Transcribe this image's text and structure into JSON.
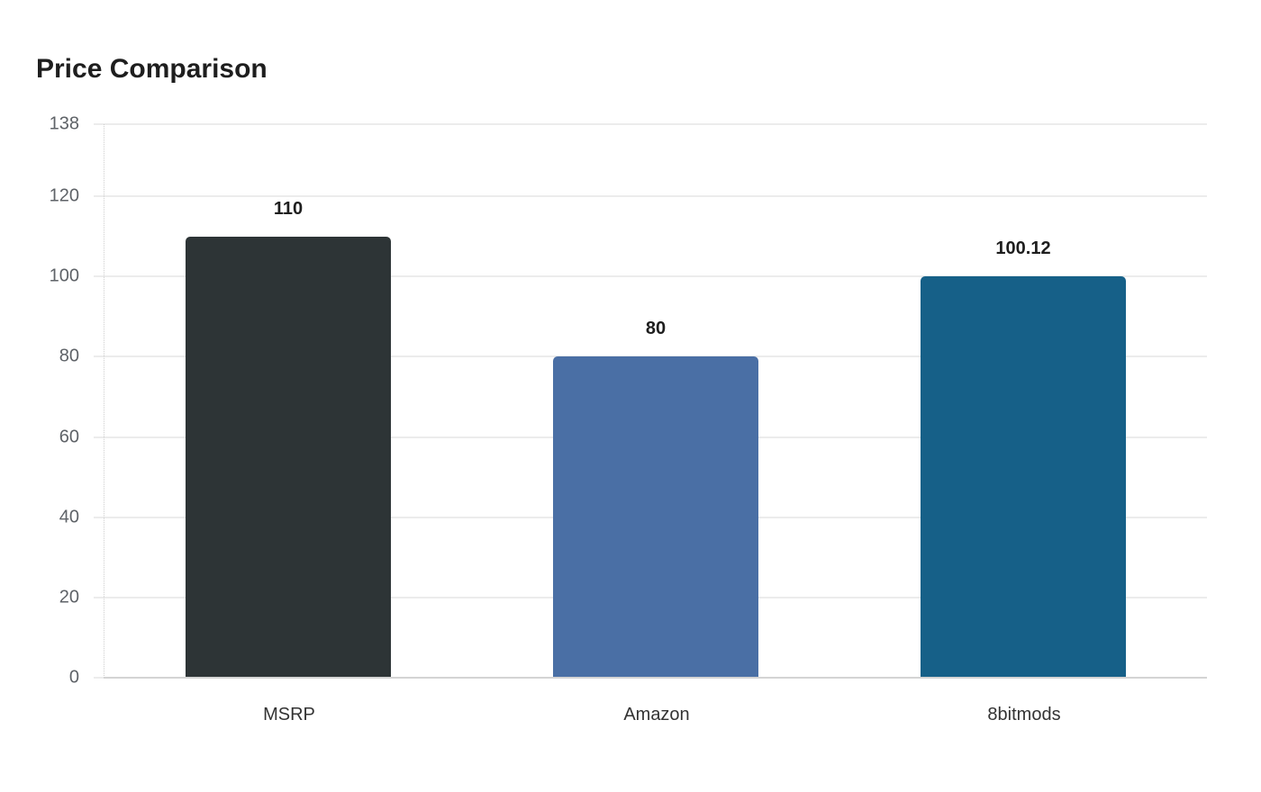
{
  "title": "Price Comparison",
  "y_ticks": [
    "0",
    "20",
    "40",
    "60",
    "80",
    "100",
    "120",
    "138"
  ],
  "bars": [
    {
      "label": "MSRP",
      "value_label": "110",
      "value": 110,
      "color": "#2d3436"
    },
    {
      "label": "Amazon",
      "value_label": "80",
      "value": 80,
      "color": "#4a6fa5"
    },
    {
      "label": "8bitmods",
      "value_label": "100.12",
      "value": 100.12,
      "color": "#166088"
    }
  ],
  "chart_data": {
    "type": "bar",
    "title": "Price Comparison",
    "categories": [
      "MSRP",
      "Amazon",
      "8bitmods"
    ],
    "values": [
      110,
      80,
      100.12
    ],
    "colors": [
      "#2d3436",
      "#4a6fa5",
      "#166088"
    ],
    "xlabel": "",
    "ylabel": "",
    "ylim": [
      0,
      138
    ],
    "yticks": [
      0,
      20,
      40,
      60,
      80,
      100,
      120,
      138
    ],
    "grid": true,
    "legend": "none",
    "data_labels": true
  }
}
